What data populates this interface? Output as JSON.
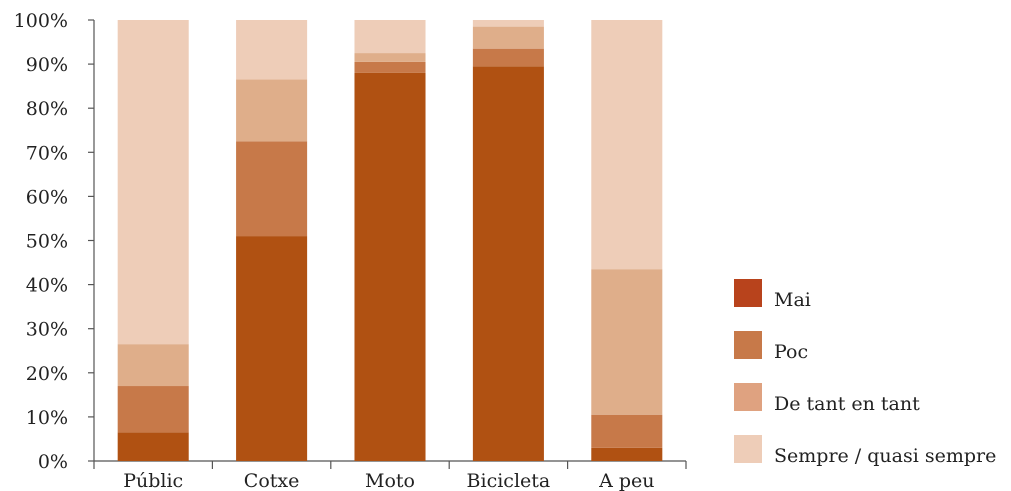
{
  "chart_data": {
    "type": "bar",
    "stacked": true,
    "title": "",
    "xlabel": "",
    "ylabel": "",
    "ylim": [
      0,
      100
    ],
    "y_ticks": [
      "0%",
      "10%",
      "20%",
      "30%",
      "40%",
      "50%",
      "60%",
      "70%",
      "80%",
      "90%",
      "100%"
    ],
    "categories": [
      "Públic",
      "Cotxe",
      "Moto",
      "Bicicleta",
      "A peu"
    ],
    "series": [
      {
        "name": "Mai",
        "color": "#B05112",
        "values": [
          6.5,
          51,
          88,
          89.5,
          3
        ]
      },
      {
        "name": "Poc",
        "color": "#C77949",
        "values": [
          10.5,
          21.5,
          2.5,
          4,
          7.5
        ]
      },
      {
        "name": "De tant en tant",
        "color": "#DFAE8A",
        "values": [
          9.5,
          14,
          2,
          5,
          33
        ]
      },
      {
        "name": "Sempre / quasi sempre",
        "color": "#EECDB8",
        "values": [
          73.5,
          13.5,
          7.5,
          1.5,
          56.5
        ]
      }
    ],
    "legend_colors": [
      "#B8431C",
      "#C77949",
      "#DFA280",
      "#EECDB8"
    ],
    "legend_position": "right",
    "grid": false
  }
}
